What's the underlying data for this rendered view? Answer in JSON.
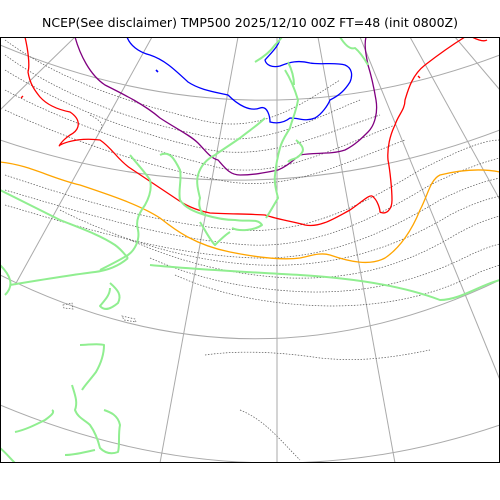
{
  "figure": {
    "title": "NCEP(See disclaimer) TMP500 2025/12/10 00Z FT=48 (init 0800Z)"
  },
  "colors": {
    "background": "#ffffff",
    "frame": "#000000",
    "graticule": "#aaaaaa",
    "coastline": "#90ee90",
    "isotherm_dotted": "#555555",
    "isotherm_orange": "#ffa500",
    "isotherm_red": "#ff0000",
    "isotherm_purple": "#800080",
    "isotherm_blue": "#0000ff"
  },
  "legend": {
    "highlighted_isotherm_colors": [
      "orange",
      "red",
      "purple",
      "blue"
    ]
  }
}
